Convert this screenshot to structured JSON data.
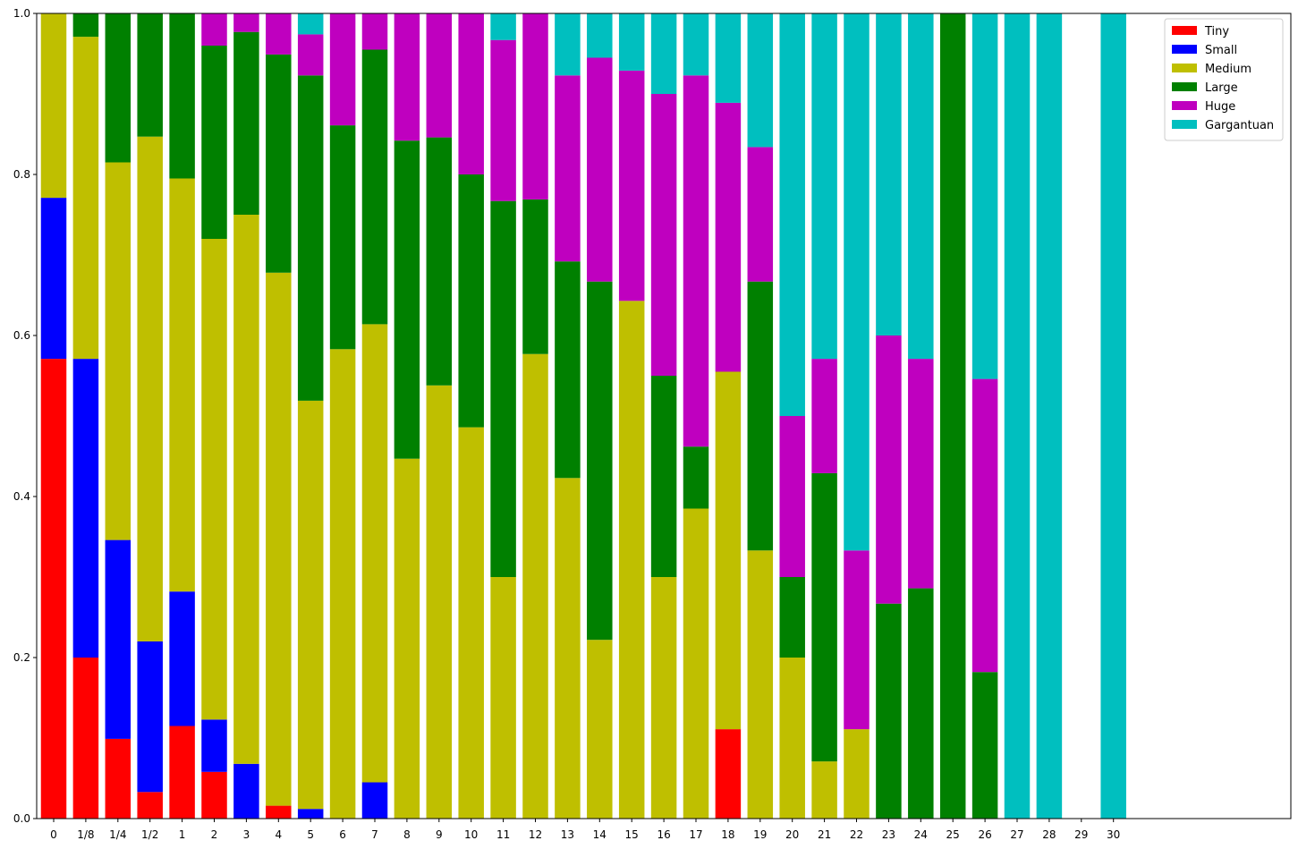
{
  "chart_data": {
    "type": "bar",
    "stacked": true,
    "title": "",
    "xlabel": "",
    "ylabel": "",
    "ylim": [
      0,
      1.0
    ],
    "yticks": [
      "0.0",
      "0.2",
      "0.4",
      "0.6",
      "0.8",
      "1.0"
    ],
    "categories": [
      "0",
      "1/8",
      "1/4",
      "1/2",
      "1",
      "2",
      "3",
      "4",
      "5",
      "6",
      "7",
      "8",
      "9",
      "10",
      "11",
      "12",
      "13",
      "14",
      "15",
      "16",
      "17",
      "18",
      "19",
      "20",
      "21",
      "22",
      "23",
      "24",
      "25",
      "26",
      "27",
      "28",
      "29",
      "30"
    ],
    "legend_position": "top-right",
    "series": [
      {
        "name": "Tiny",
        "color": "#ff0000",
        "values": [
          0.571,
          0.2,
          0.099,
          0.033,
          0.115,
          0.058,
          0,
          0.016,
          0,
          0,
          0,
          0,
          0,
          0,
          0,
          0,
          0,
          0,
          0,
          0,
          0,
          0.111,
          0,
          0,
          0,
          0,
          0,
          0,
          0,
          0,
          0,
          0,
          0,
          0
        ]
      },
      {
        "name": "Small",
        "color": "#0000ff",
        "values": [
          0.2,
          0.371,
          0.247,
          0.187,
          0.167,
          0.065,
          0.068,
          0,
          0.012,
          0,
          0.045,
          0,
          0,
          0,
          0,
          0,
          0,
          0,
          0,
          0,
          0,
          0,
          0,
          0,
          0,
          0,
          0,
          0,
          0,
          0,
          0,
          0,
          0,
          0
        ]
      },
      {
        "name": "Medium",
        "color": "#bfbf00",
        "values": [
          0.229,
          0.4,
          0.469,
          0.627,
          0.513,
          0.597,
          0.682,
          0.662,
          0.507,
          0.583,
          0.569,
          0.447,
          0.538,
          0.486,
          0.3,
          0.577,
          0.423,
          0.222,
          0.643,
          0.3,
          0.385,
          0.444,
          0.333,
          0.2,
          0.071,
          0.111,
          0,
          0,
          0,
          0,
          0,
          0,
          0,
          0
        ]
      },
      {
        "name": "Large",
        "color": "#008000",
        "values": [
          0,
          0.029,
          0.185,
          0.153,
          0.205,
          0.24,
          0.227,
          0.271,
          0.404,
          0.278,
          0.341,
          0.395,
          0.308,
          0.314,
          0.467,
          0.192,
          0.269,
          0.445,
          0,
          0.25,
          0.077,
          0,
          0.334,
          0.1,
          0.358,
          0,
          0.267,
          0.286,
          1.0,
          0.182,
          0,
          0,
          0,
          0
        ]
      },
      {
        "name": "Huge",
        "color": "#bf00bf",
        "values": [
          0,
          0,
          0,
          0,
          0,
          0.04,
          0.023,
          0.051,
          0.051,
          0.139,
          0.045,
          0.158,
          0.154,
          0.2,
          0.2,
          0.231,
          0.231,
          0.278,
          0.286,
          0.35,
          0.461,
          0.334,
          0.167,
          0.2,
          0.142,
          0.222,
          0.333,
          0.285,
          0,
          0.364,
          0,
          0,
          0,
          0
        ]
      },
      {
        "name": "Gargantuan",
        "color": "#00bfbf",
        "values": [
          0,
          0,
          0,
          0,
          0,
          0,
          0,
          0,
          0.026,
          0,
          0,
          0,
          0,
          0,
          0.033,
          0,
          0.077,
          0.055,
          0.071,
          0.1,
          0.077,
          0.111,
          0.166,
          0.5,
          0.429,
          0.667,
          0.4,
          0.429,
          0,
          0.454,
          1.0,
          1.0,
          0,
          1.0
        ]
      }
    ]
  }
}
